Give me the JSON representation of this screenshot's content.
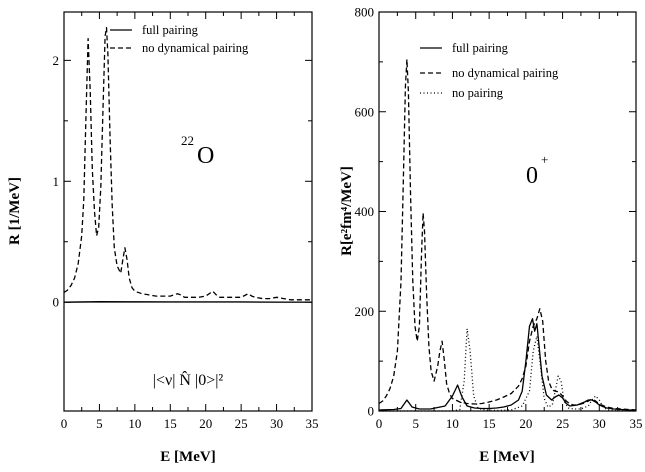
{
  "chart_data": [
    {
      "type": "line",
      "xlabel": "E [MeV]",
      "ylabel": "R [1/MeV]",
      "xlim": [
        0,
        35
      ],
      "ylim": [
        -0.9,
        2.4
      ],
      "xticks": [
        "0",
        "5",
        "10",
        "15",
        "20",
        "25",
        "30",
        "35"
      ],
      "yticks": [
        "0",
        "1",
        "2"
      ],
      "legend_position": "top-right",
      "annotation": {
        "super": "22",
        "main": "O"
      },
      "bottom_label": "|<ν| N̂ |0>|²",
      "zero_line": true,
      "series": [
        {
          "name": "full pairing",
          "style": "solid",
          "x": [
            0,
            5,
            10,
            15,
            20,
            25,
            30,
            35
          ],
          "y": [
            0,
            0.004,
            0.003,
            0.002,
            0.002,
            0.002,
            0.001,
            0.001
          ]
        },
        {
          "name": "no dynamical pairing",
          "style": "dashed",
          "x": [
            0,
            0.5,
            1,
            1.5,
            2,
            2.5,
            2.8,
            3.1,
            3.4,
            3.7,
            4,
            4.3,
            4.6,
            4.9,
            5.2,
            5.5,
            5.8,
            6.0,
            6.2,
            6.5,
            6.8,
            7.1,
            7.5,
            8,
            8.3,
            8.6,
            8.9,
            9.2,
            9.6,
            10,
            11,
            12,
            13,
            14,
            15,
            16,
            16.5,
            17,
            18,
            19,
            20,
            21,
            21.5,
            22,
            23,
            24,
            25,
            26,
            26.5,
            27,
            28,
            29,
            30,
            31,
            32,
            33,
            34,
            35
          ],
          "y": [
            0.08,
            0.1,
            0.14,
            0.2,
            0.32,
            0.55,
            0.85,
            1.55,
            2.18,
            1.75,
            1.1,
            0.75,
            0.55,
            0.62,
            0.95,
            1.6,
            2.2,
            2.27,
            2.05,
            1.35,
            0.8,
            0.45,
            0.3,
            0.24,
            0.35,
            0.45,
            0.35,
            0.2,
            0.12,
            0.09,
            0.07,
            0.06,
            0.05,
            0.05,
            0.05,
            0.07,
            0.06,
            0.04,
            0.04,
            0.04,
            0.05,
            0.09,
            0.06,
            0.04,
            0.04,
            0.04,
            0.04,
            0.07,
            0.05,
            0.04,
            0.03,
            0.03,
            0.04,
            0.03,
            0.02,
            0.02,
            0.02,
            0.02
          ]
        }
      ]
    },
    {
      "type": "line",
      "xlabel": "E [MeV]",
      "ylabel": "R[e²fm⁴/MeV]",
      "xlim": [
        0,
        35
      ],
      "ylim": [
        0,
        800
      ],
      "xticks": [
        "0",
        "5",
        "10",
        "15",
        "20",
        "25",
        "30",
        "35"
      ],
      "yticks": [
        "0",
        "200",
        "400",
        "600",
        "800"
      ],
      "legend_position": "top-right",
      "annotation": {
        "super": "+",
        "main": "0"
      },
      "series": [
        {
          "name": "full pairing",
          "style": "solid",
          "x": [
            0,
            2,
            3,
            3.8,
            4.5,
            5.5,
            7,
            9,
            10,
            10.7,
            11.3,
            12,
            13,
            14,
            15,
            16,
            17,
            18,
            19,
            19.5,
            20,
            20.5,
            20.9,
            21.2,
            21.5,
            21.8,
            22.2,
            22.8,
            23.5,
            24,
            24.5,
            25,
            25.5,
            26,
            27,
            28,
            28.5,
            29,
            29.5,
            30,
            31,
            32,
            33,
            34,
            35
          ],
          "y": [
            2,
            3,
            5,
            22,
            8,
            4,
            4,
            10,
            30,
            52,
            28,
            10,
            6,
            5,
            5,
            6,
            8,
            12,
            22,
            40,
            100,
            170,
            185,
            160,
            175,
            130,
            70,
            32,
            22,
            28,
            32,
            26,
            15,
            10,
            12,
            18,
            22,
            22,
            18,
            12,
            6,
            4,
            3,
            2,
            2
          ]
        },
        {
          "name": "no dynamical pairing",
          "style": "dashed",
          "x": [
            0,
            0.5,
            1,
            1.5,
            2,
            2.5,
            3,
            3.3,
            3.6,
            3.8,
            4.0,
            4.3,
            4.6,
            4.9,
            5.2,
            5.5,
            5.8,
            6.0,
            6.2,
            6.5,
            6.8,
            7.1,
            7.5,
            8,
            8.3,
            8.6,
            8.9,
            9.2,
            9.6,
            10,
            11,
            12,
            13,
            14,
            15,
            16,
            17,
            18,
            19,
            19.5,
            20,
            20.5,
            21,
            21.5,
            21.9,
            22.3,
            22.7,
            23.1,
            23.6,
            24,
            24.5,
            25,
            25.5,
            26,
            26.5,
            27,
            28,
            28.5,
            29,
            29.5,
            30,
            31,
            32,
            33,
            34,
            35
          ],
          "y": [
            15,
            20,
            30,
            45,
            70,
            120,
            260,
            450,
            650,
            705,
            640,
            430,
            260,
            170,
            140,
            170,
            320,
            397,
            360,
            230,
            130,
            80,
            60,
            90,
            120,
            140,
            100,
            55,
            35,
            25,
            18,
            15,
            14,
            15,
            18,
            22,
            28,
            35,
            50,
            65,
            90,
            140,
            170,
            185,
            205,
            180,
            100,
            60,
            42,
            40,
            38,
            30,
            20,
            14,
            12,
            12,
            16,
            20,
            24,
            20,
            14,
            8,
            5,
            4,
            3,
            2
          ]
        },
        {
          "name": "no pairing",
          "style": "dotted",
          "x": [
            0,
            5,
            10,
            11,
            11.6,
            12.0,
            12.4,
            12.9,
            13.5,
            14.5,
            16,
            18,
            19.5,
            20.5,
            21,
            21.5,
            22,
            22.5,
            23,
            23.6,
            24,
            24.4,
            24.8,
            25.2,
            25.8,
            26.5,
            27.5,
            28.5,
            29,
            29.5,
            30,
            30.5,
            31,
            32,
            33,
            34,
            35
          ],
          "y": [
            0,
            0,
            0,
            3,
            60,
            165,
            120,
            30,
            5,
            2,
            1,
            2,
            10,
            40,
            120,
            150,
            90,
            25,
            8,
            12,
            40,
            70,
            60,
            20,
            6,
            4,
            4,
            10,
            22,
            30,
            22,
            8,
            3,
            1,
            1,
            0,
            0
          ]
        }
      ]
    }
  ]
}
